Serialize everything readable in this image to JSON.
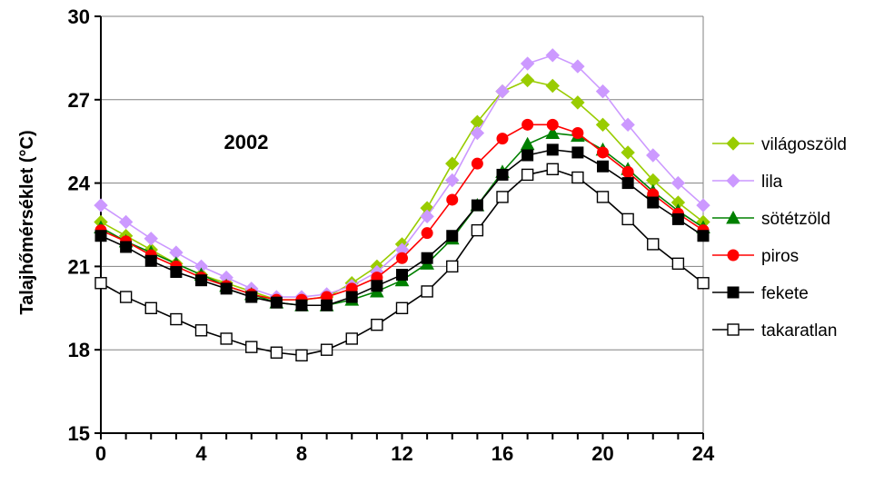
{
  "chart_data": {
    "type": "line",
    "ylabel": "Talajhőmérséklet (°C)",
    "xlabel": "",
    "annotation": "2002",
    "xlim": [
      0,
      24
    ],
    "ylim": [
      15,
      30
    ],
    "xticks": [
      "0",
      "4",
      "8",
      "12",
      "16",
      "20",
      "24"
    ],
    "yticks": [
      "15",
      "18",
      "21",
      "24",
      "27",
      "30"
    ],
    "grid": "horizontal",
    "legend_position": "right",
    "x": [
      0,
      1,
      2,
      3,
      4,
      5,
      6,
      7,
      8,
      9,
      10,
      11,
      12,
      13,
      14,
      15,
      16,
      17,
      18,
      19,
      20,
      21,
      22,
      23,
      24
    ],
    "series": [
      {
        "name": "világoszöld",
        "color": "#99cc00",
        "marker": "diamond",
        "values": [
          22.6,
          22.1,
          21.6,
          21.1,
          20.7,
          20.4,
          20.1,
          19.8,
          19.8,
          19.9,
          20.4,
          21.0,
          21.8,
          23.1,
          24.7,
          26.2,
          27.3,
          27.7,
          27.5,
          26.9,
          26.1,
          25.1,
          24.1,
          23.3,
          22.6
        ]
      },
      {
        "name": "lila",
        "color": "#cc99ff",
        "marker": "diamond",
        "values": [
          23.2,
          22.6,
          22.0,
          21.5,
          21.0,
          20.6,
          20.2,
          19.9,
          19.9,
          20.0,
          20.3,
          20.8,
          21.6,
          22.8,
          24.1,
          25.8,
          27.3,
          28.3,
          28.6,
          28.2,
          27.3,
          26.1,
          25.0,
          24.0,
          23.2
        ]
      },
      {
        "name": "sötétzöld",
        "color": "#008000",
        "marker": "triangle",
        "values": [
          22.4,
          21.9,
          21.5,
          21.1,
          20.7,
          20.3,
          20.0,
          19.7,
          19.6,
          19.6,
          19.8,
          20.1,
          20.5,
          21.1,
          22.0,
          23.2,
          24.4,
          25.4,
          25.8,
          25.7,
          25.2,
          24.5,
          23.7,
          23.0,
          22.4
        ]
      },
      {
        "name": "piros",
        "color": "#ff0000",
        "marker": "circle",
        "values": [
          22.3,
          21.9,
          21.4,
          21.0,
          20.6,
          20.3,
          20.0,
          19.8,
          19.8,
          19.9,
          20.2,
          20.6,
          21.3,
          22.2,
          23.4,
          24.7,
          25.6,
          26.1,
          26.1,
          25.8,
          25.1,
          24.4,
          23.6,
          22.9,
          22.3
        ]
      },
      {
        "name": "fekete",
        "color": "#000000",
        "marker": "square",
        "values": [
          22.1,
          21.7,
          21.2,
          20.8,
          20.5,
          20.2,
          19.9,
          19.7,
          19.6,
          19.6,
          19.9,
          20.3,
          20.7,
          21.3,
          22.1,
          23.2,
          24.3,
          25.0,
          25.2,
          25.1,
          24.6,
          24.0,
          23.3,
          22.7,
          22.1
        ]
      },
      {
        "name": "takaratlan",
        "color": "#000000",
        "marker": "square-open",
        "values": [
          20.4,
          19.9,
          19.5,
          19.1,
          18.7,
          18.4,
          18.1,
          17.9,
          17.8,
          18.0,
          18.4,
          18.9,
          19.5,
          20.1,
          21.0,
          22.3,
          23.5,
          24.3,
          24.5,
          24.2,
          23.5,
          22.7,
          21.8,
          21.1,
          20.4
        ]
      }
    ]
  }
}
